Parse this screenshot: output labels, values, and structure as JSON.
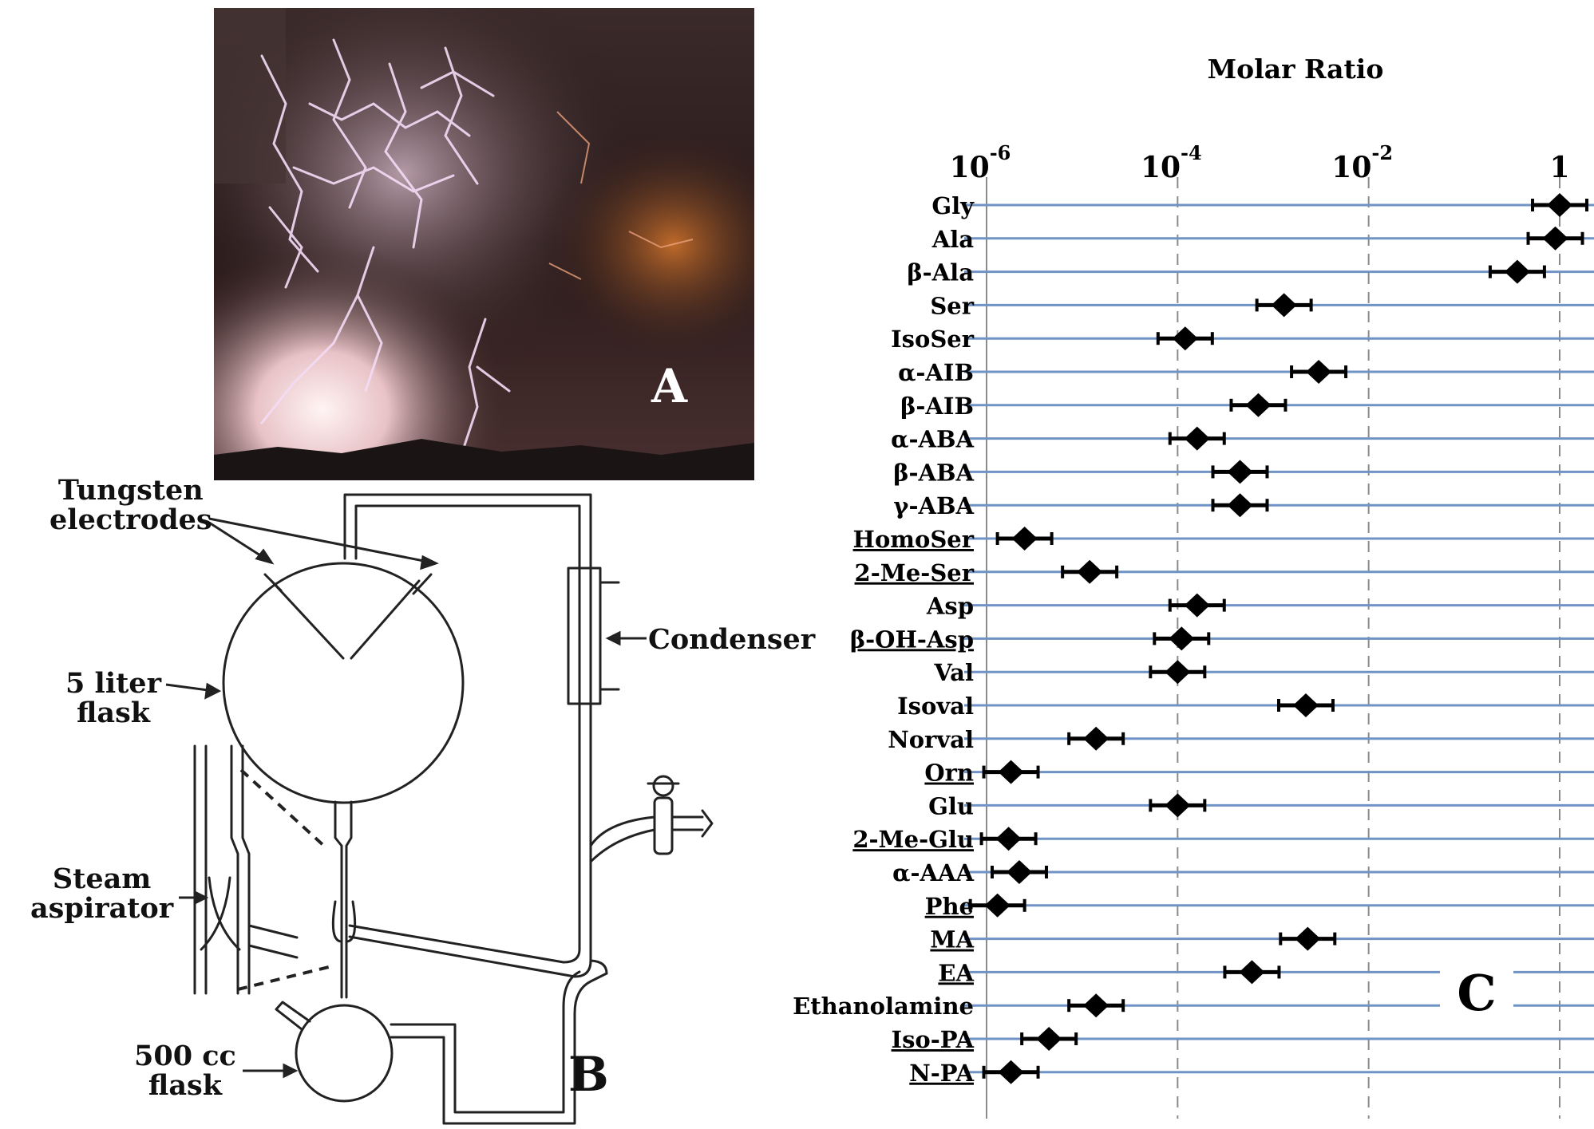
{
  "panels": {
    "a_label": "A",
    "b_label": "B",
    "c_label": "C"
  },
  "apparatus": {
    "tungsten_label": [
      "Tungsten",
      "electrodes"
    ],
    "condenser_label": "Condenser",
    "flask5_label": [
      "5 liter",
      "flask"
    ],
    "steam_label": [
      "Steam",
      "aspirator"
    ],
    "flask500_label": [
      "500 cc",
      "flask"
    ]
  },
  "colors": {
    "gridline": "#6f93c5",
    "marker": "#000000",
    "photo_sky": "#1a1010",
    "lightning": "#f3dcf6"
  },
  "chart_data": {
    "type": "scatter",
    "title": "Molar Ratio",
    "x_scale": "log",
    "x_range": [
      1e-06,
      1
    ],
    "x_ticks": [
      {
        "value": 1e-06,
        "base": "10",
        "exp": "-6"
      },
      {
        "value": 0.0001,
        "base": "10",
        "exp": "-4"
      },
      {
        "value": 0.01,
        "base": "10",
        "exp": "-2"
      },
      {
        "value": 1,
        "base": "1",
        "exp": ""
      }
    ],
    "vertical_gridlines": "dashed",
    "horizontal_gridlines": true,
    "points": [
      {
        "label": "Gly",
        "value": 1.0,
        "underlined": false
      },
      {
        "label": "Ala",
        "value": 0.9,
        "underlined": false
      },
      {
        "label": "β-Ala",
        "value": 0.36,
        "underlined": false
      },
      {
        "label": "Ser",
        "value": 0.0013,
        "underlined": false
      },
      {
        "label": "IsoSer",
        "value": 0.00012,
        "underlined": false
      },
      {
        "label": "α-AIB",
        "value": 0.003,
        "underlined": false
      },
      {
        "label": "β-AIB",
        "value": 0.0007,
        "underlined": false
      },
      {
        "label": "α-ABA",
        "value": 0.00016,
        "underlined": false
      },
      {
        "label": "β-ABA",
        "value": 0.00045,
        "underlined": false
      },
      {
        "label": "γ-ABA",
        "value": 0.00045,
        "underlined": false
      },
      {
        "label": "HomoSer",
        "value": 2.5e-06,
        "underlined": true
      },
      {
        "label": "2-Me-Ser",
        "value": 1.2e-05,
        "underlined": true
      },
      {
        "label": "Asp",
        "value": 0.00016,
        "underlined": false
      },
      {
        "label": "β-OH-Asp",
        "value": 0.00011,
        "underlined": true
      },
      {
        "label": "Val",
        "value": 0.0001,
        "underlined": false
      },
      {
        "label": "Isoval",
        "value": 0.0022,
        "underlined": false
      },
      {
        "label": "Norval",
        "value": 1.4e-05,
        "underlined": false
      },
      {
        "label": "Orn",
        "value": 1.8e-06,
        "underlined": true
      },
      {
        "label": "Glu",
        "value": 0.0001,
        "underlined": false
      },
      {
        "label": "2-Me-Glu",
        "value": 1.7e-06,
        "underlined": true
      },
      {
        "label": "α-AAA",
        "value": 2.2e-06,
        "underlined": false
      },
      {
        "label": "Phe",
        "value": 1.3e-06,
        "underlined": true
      },
      {
        "label": "MA",
        "value": 0.0023,
        "underlined": true
      },
      {
        "label": "EA",
        "value": 0.0006,
        "underlined": true
      },
      {
        "label": "Ethanolamine",
        "value": 1.4e-05,
        "underlined": false
      },
      {
        "label": "Iso-PA",
        "value": 4.5e-06,
        "underlined": true
      },
      {
        "label": "N-PA",
        "value": 1.8e-06,
        "underlined": true
      }
    ]
  }
}
